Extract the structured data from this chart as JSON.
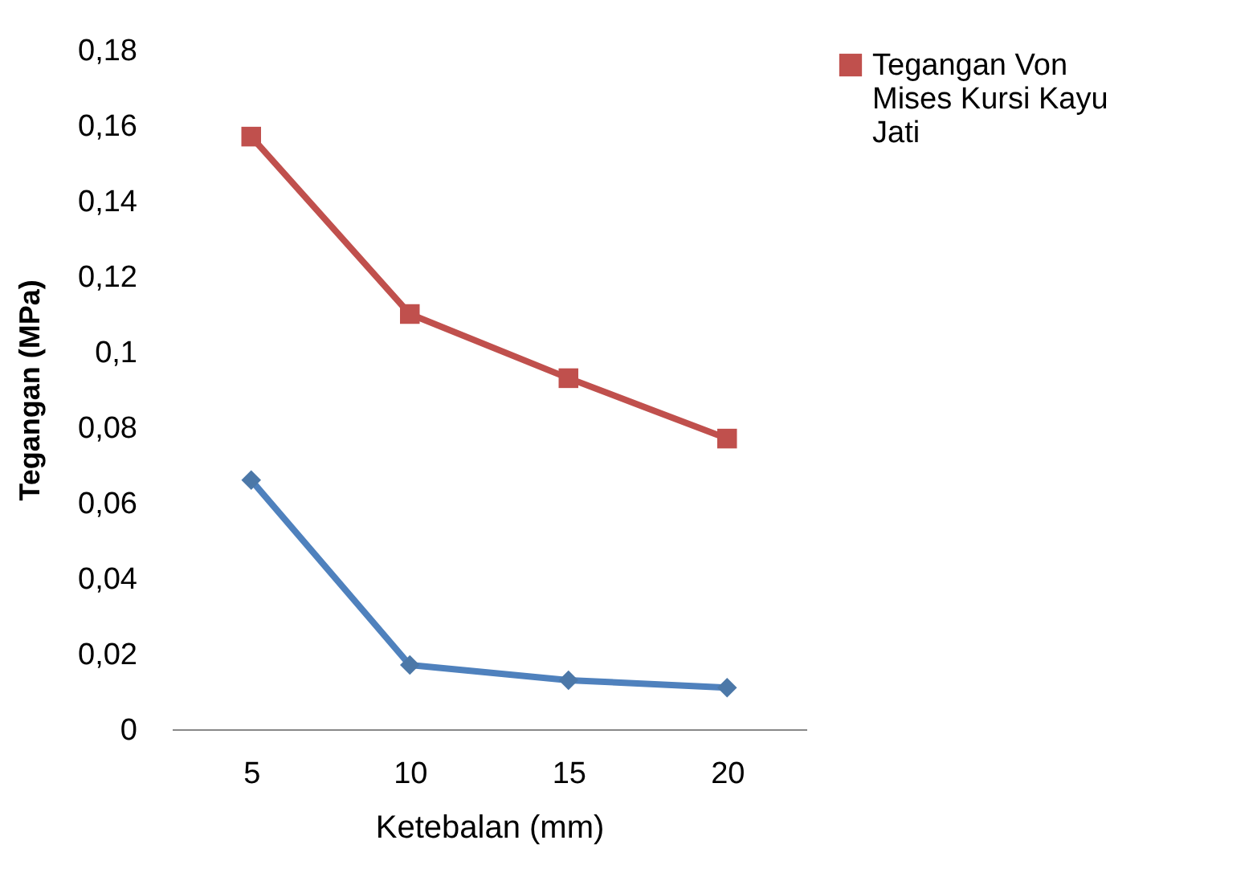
{
  "chart_data": {
    "type": "line",
    "xlabel": "Ketebalan (mm)",
    "ylabel": "Tegangan (MPa)",
    "categories": [
      "5",
      "10",
      "15",
      "20"
    ],
    "series": [
      {
        "color": "#4f81bd",
        "marker": "diamond",
        "values": [
          0.066,
          0.017,
          0.013,
          0.011
        ]
      },
      {
        "name": "Tegangan Von Mises Kursi Kayu Jati",
        "color": "#c0504d",
        "marker": "square",
        "values": [
          0.157,
          0.11,
          0.093,
          0.077
        ]
      }
    ],
    "ylim": [
      0,
      0.18
    ],
    "yticks": [
      {
        "value": 0,
        "label": "0"
      },
      {
        "value": 0.02,
        "label": "0,02"
      },
      {
        "value": 0.04,
        "label": "0,04"
      },
      {
        "value": 0.06,
        "label": "0,06"
      },
      {
        "value": 0.08,
        "label": "0,08"
      },
      {
        "value": 0.1,
        "label": "0,1"
      },
      {
        "value": 0.12,
        "label": "0,12"
      },
      {
        "value": 0.14,
        "label": "0,14"
      },
      {
        "value": 0.16,
        "label": "0,16"
      },
      {
        "value": 0.18,
        "label": "0,18"
      }
    ],
    "grid": false,
    "legend": "right"
  }
}
